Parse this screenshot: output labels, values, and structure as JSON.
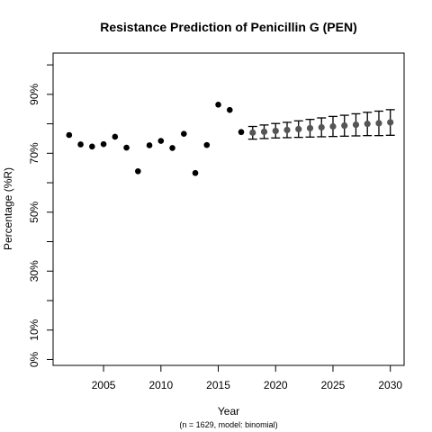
{
  "chart_data": {
    "type": "scatter",
    "title": "Resistance Prediction of Penicillin G (PEN)",
    "subtitle": "(n = 1629, model: binomial)",
    "xlabel": "Year",
    "ylabel": "Percentage (%R)",
    "xlim": [
      2000.6,
      2031.2
    ],
    "ylim": [
      -2,
      104
    ],
    "x_ticks": [
      2005,
      2010,
      2015,
      2020,
      2025,
      2030
    ],
    "y_ticks": [
      0,
      10,
      20,
      30,
      40,
      50,
      60,
      70,
      80,
      90,
      100
    ],
    "y_tick_labels": [
      {
        "value": 0,
        "label": "0%"
      },
      {
        "value": 10,
        "label": "10%"
      },
      {
        "value": 30,
        "label": "30%"
      },
      {
        "value": 50,
        "label": "50%"
      },
      {
        "value": 70,
        "label": "70%"
      },
      {
        "value": 90,
        "label": "90%"
      }
    ],
    "grid": false,
    "series": [
      {
        "kind": "observed",
        "color": "#000000",
        "points": [
          {
            "x": 2002,
            "y": 76.2
          },
          {
            "x": 2003,
            "y": 73.0
          },
          {
            "x": 2004,
            "y": 72.3
          },
          {
            "x": 2005,
            "y": 73.1
          },
          {
            "x": 2006,
            "y": 75.6
          },
          {
            "x": 2007,
            "y": 71.9
          },
          {
            "x": 2008,
            "y": 63.9
          },
          {
            "x": 2009,
            "y": 72.7
          },
          {
            "x": 2010,
            "y": 74.2
          },
          {
            "x": 2011,
            "y": 71.8
          },
          {
            "x": 2012,
            "y": 76.6
          },
          {
            "x": 2013,
            "y": 63.3
          },
          {
            "x": 2014,
            "y": 72.8
          },
          {
            "x": 2015,
            "y": 86.5
          },
          {
            "x": 2016,
            "y": 84.7
          },
          {
            "x": 2017,
            "y": 77.2
          }
        ]
      },
      {
        "kind": "predicted",
        "color": "#555555",
        "points": [
          {
            "x": 2018,
            "y": 77.0,
            "lower": 74.8,
            "upper": 79.1
          },
          {
            "x": 2019,
            "y": 77.3,
            "lower": 75.0,
            "upper": 79.6
          },
          {
            "x": 2020,
            "y": 77.6,
            "lower": 75.2,
            "upper": 80.1
          },
          {
            "x": 2021,
            "y": 77.9,
            "lower": 75.3,
            "upper": 80.5
          },
          {
            "x": 2022,
            "y": 78.2,
            "lower": 75.4,
            "upper": 81.0
          },
          {
            "x": 2023,
            "y": 78.5,
            "lower": 75.5,
            "upper": 81.5
          },
          {
            "x": 2024,
            "y": 78.8,
            "lower": 75.6,
            "upper": 82.0
          },
          {
            "x": 2025,
            "y": 79.1,
            "lower": 75.7,
            "upper": 82.5
          },
          {
            "x": 2026,
            "y": 79.4,
            "lower": 75.8,
            "upper": 82.9
          },
          {
            "x": 2027,
            "y": 79.7,
            "lower": 75.9,
            "upper": 83.4
          },
          {
            "x": 2028,
            "y": 80.0,
            "lower": 76.0,
            "upper": 83.9
          },
          {
            "x": 2029,
            "y": 80.2,
            "lower": 76.0,
            "upper": 84.3
          },
          {
            "x": 2030,
            "y": 80.5,
            "lower": 76.1,
            "upper": 84.8
          }
        ]
      }
    ]
  }
}
